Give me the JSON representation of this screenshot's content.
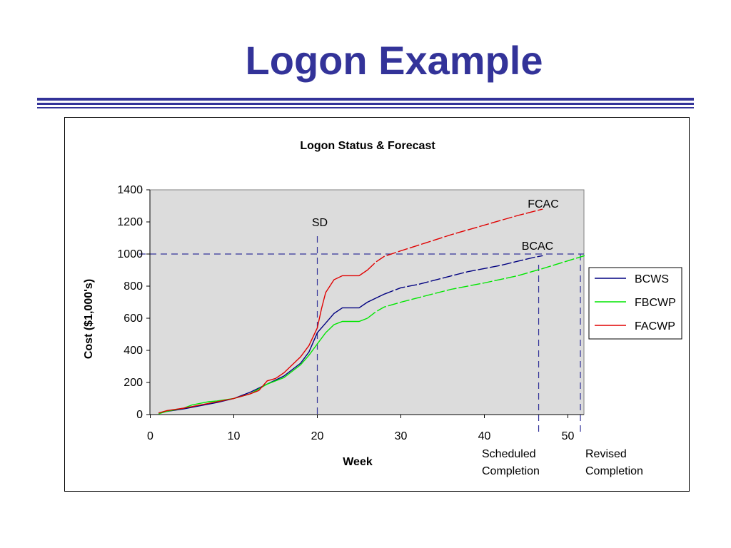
{
  "slide": {
    "title": "Logon Example"
  },
  "colors": {
    "title": "#333399",
    "plot_bg": "#dcdcdc",
    "guide": "#333399"
  },
  "chart_data": {
    "type": "line",
    "title": "Logon Status & Forecast",
    "xlabel": "Week",
    "ylabel": "Cost ($1,000's)",
    "xlim": [
      0,
      52
    ],
    "ylim": [
      0,
      1400
    ],
    "xticks": [
      0,
      10,
      20,
      30,
      40,
      50
    ],
    "yticks": [
      0,
      200,
      400,
      600,
      800,
      1000,
      1200,
      1400
    ],
    "grid": false,
    "legend_position": "right",
    "series": [
      {
        "name": "BCWS",
        "color": "#000080",
        "x": [
          1,
          2,
          4,
          6,
          8,
          10,
          12,
          13,
          14,
          16,
          18,
          19,
          20,
          21,
          22,
          23,
          24,
          25,
          26,
          28,
          30,
          32,
          35,
          38,
          42,
          44,
          46,
          47
        ],
        "y": [
          10,
          20,
          35,
          55,
          75,
          100,
          140,
          165,
          190,
          240,
          320,
          390,
          510,
          570,
          630,
          665,
          665,
          665,
          700,
          750,
          790,
          810,
          850,
          890,
          930,
          955,
          980,
          990
        ],
        "dashed_from_x": 28
      },
      {
        "name": "FBCWP",
        "color": "#00e600",
        "x": [
          1,
          2,
          4,
          5,
          7,
          8,
          10,
          12,
          14,
          16,
          18,
          19,
          20,
          21,
          22,
          23,
          25,
          26,
          27,
          28,
          30,
          33,
          36,
          40,
          44,
          47,
          52
        ],
        "y": [
          5,
          20,
          40,
          60,
          80,
          85,
          100,
          130,
          190,
          230,
          310,
          370,
          440,
          510,
          560,
          580,
          580,
          600,
          640,
          670,
          700,
          740,
          780,
          820,
          865,
          910,
          990
        ],
        "dashed_from_x": 26
      },
      {
        "name": "FACWP",
        "color": "#e00000",
        "x": [
          1,
          2,
          4,
          6,
          8,
          10,
          12,
          13,
          14,
          15,
          16,
          17,
          18,
          19,
          20,
          20.5,
          21,
          22,
          23,
          25,
          26,
          27,
          28,
          30,
          33,
          36,
          40,
          44,
          47
        ],
        "y": [
          10,
          25,
          40,
          60,
          80,
          100,
          130,
          150,
          210,
          225,
          260,
          310,
          360,
          430,
          540,
          660,
          760,
          840,
          865,
          865,
          900,
          950,
          985,
          1020,
          1070,
          1120,
          1180,
          1240,
          1280
        ],
        "dashed_from_x": 26
      }
    ],
    "reference_lines": [
      {
        "orientation": "horizontal",
        "value": 1000
      },
      {
        "orientation": "vertical",
        "value": 20
      },
      {
        "orientation": "vertical",
        "value": 46.5
      },
      {
        "orientation": "vertical",
        "value": 51.5
      }
    ],
    "annotations": {
      "sd": "SD",
      "fcac": "FCAC",
      "bcac": "BCAC",
      "scheduled_1": "Scheduled",
      "scheduled_2": "Completion",
      "revised_1": "Revised",
      "revised_2": "Completion"
    }
  }
}
